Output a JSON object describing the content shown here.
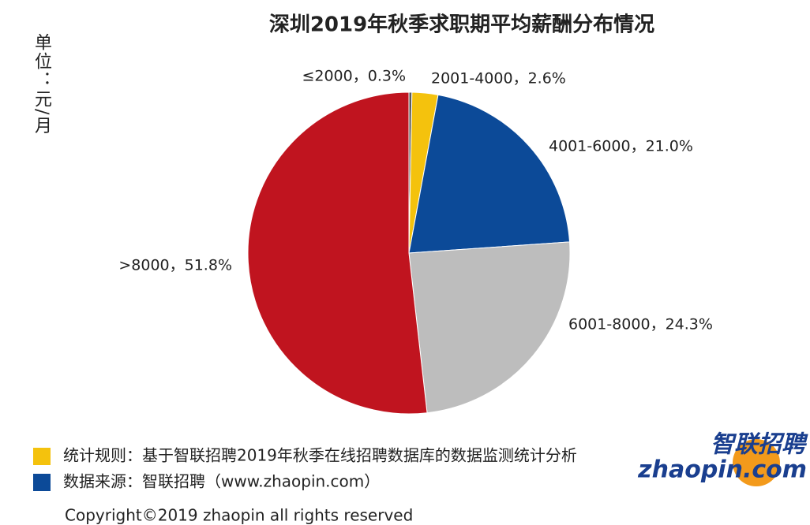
{
  "chart_data": {
    "type": "pie",
    "title": "深圳2019年秋季求职期平均薪酬分布情况",
    "unit_label": "单位：元/月",
    "labels": [
      "≤2000，0.3%",
      "2001-4000，2.6%",
      "4001-6000，21.0%",
      "6001-8000，24.3%",
      ">8000，51.8%"
    ],
    "values": [
      0.3,
      2.6,
      21.0,
      24.3,
      51.8
    ],
    "colors": [
      "#5a5a5a",
      "#f4c20d",
      "#0c4a98",
      "#bdbdbd",
      "#c0141f"
    ]
  },
  "footnotes": [
    {
      "color": "#f4c20d",
      "text": "统计规则：基于智联招聘2019年秋季在线招聘数据库的数据监测统计分析"
    },
    {
      "color": "#0c4a98",
      "text": "数据来源：智联招聘（www.zhaopin.com）"
    }
  ],
  "logo": {
    "cn": "智联招聘",
    "en": "zhaopin.com"
  },
  "copyright": "Copyright©2019 zhaopin all rights reserved"
}
